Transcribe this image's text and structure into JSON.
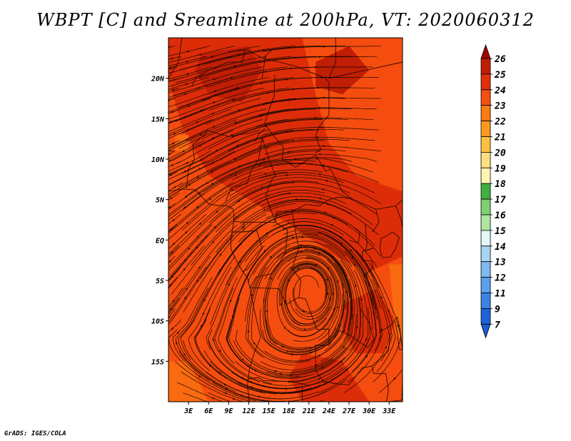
{
  "title": "WBPT [C] and Sreamline at 200hPa, VT: 2020060312",
  "credit": "GrADS: IGES/COLA",
  "map": {
    "lon_range": [
      0,
      35
    ],
    "lat_range": [
      -20,
      25
    ],
    "x_ticks": [
      "3E",
      "6E",
      "9E",
      "12E",
      "15E",
      "18E",
      "21E",
      "24E",
      "27E",
      "30E",
      "33E"
    ],
    "x_tick_values": [
      3,
      6,
      9,
      12,
      15,
      18,
      21,
      24,
      27,
      30,
      33
    ],
    "y_ticks": [
      "20N",
      "15N",
      "10N",
      "5N",
      "EQ",
      "5S",
      "10S",
      "15S"
    ],
    "y_tick_values": [
      20,
      15,
      10,
      5,
      0,
      -5,
      -10,
      -15
    ],
    "field_colors": {
      "c23": "#f54d0f",
      "c24": "#dd2d08",
      "c25": "#c01e05",
      "c22": "#fa6a10"
    },
    "vortex_center": {
      "lon": 21,
      "lat": -6
    }
  },
  "colorbar": {
    "labels": [
      "26",
      "25",
      "24",
      "23",
      "22",
      "21",
      "20",
      "19",
      "18",
      "17",
      "16",
      "15",
      "14",
      "13",
      "12",
      "11",
      "9",
      "7"
    ],
    "colors": [
      "#a50000",
      "#c01e05",
      "#e0300a",
      "#f55012",
      "#fa7a14",
      "#fb9a1e",
      "#fdc040",
      "#fde080",
      "#fff5b0",
      "#40b040",
      "#80d070",
      "#b0e4a0",
      "#e4f6f6",
      "#a8d4f4",
      "#80b8f0",
      "#5aa0ec",
      "#3a84e4",
      "#1e64d8",
      "#1e5cd0"
    ]
  }
}
